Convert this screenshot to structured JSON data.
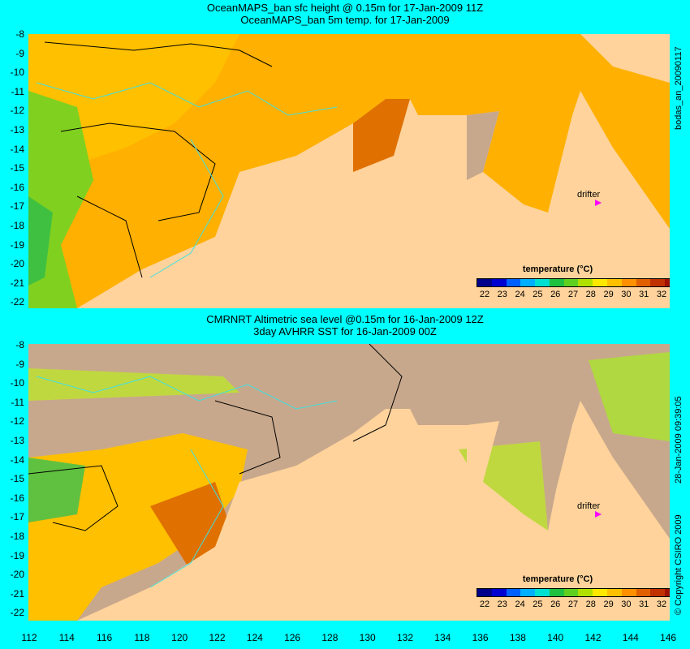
{
  "top_panel": {
    "title_line1": "OceanMAPS_ban sfc height @ 0.15m for 17-Jan-2009 11Z",
    "title_line2": "OceanMAPS_ban 5m temp. for 17-Jan-2009",
    "side_label": "bodas_an_20090117"
  },
  "bottom_panel": {
    "title_line1": "CMRNRT Altimetric sea level  @0.15m  for 16-Jan-2009 12Z",
    "title_line2": "3day AVHRR SST for 16-Jan-2009 00Z",
    "side_label": "28-Jan-2009 09:39:05",
    "copyright": "© Copyright CSIRO 2009"
  },
  "colorbar": {
    "title": "temperature (°C)",
    "ticks": [
      "22",
      "23",
      "24",
      "25",
      "26",
      "27",
      "28",
      "29",
      "30",
      "31",
      "32"
    ],
    "colors": [
      "#00008b",
      "#0000d0",
      "#0060ff",
      "#00b0ff",
      "#00e0d0",
      "#20c040",
      "#60d020",
      "#b0e000",
      "#ffe800",
      "#ffc000",
      "#ff9000",
      "#e06000",
      "#c03000",
      "#a01000"
    ]
  },
  "drifter_label": "drifter",
  "y_axis_labels": [
    "-8",
    "-9",
    "-10",
    "-11",
    "-12",
    "-13",
    "-14",
    "-15",
    "-16",
    "-17",
    "-18",
    "-19",
    "-20",
    "-21",
    "-22"
  ],
  "x_axis_labels": [
    "112",
    "114",
    "116",
    "118",
    "120",
    "122",
    "124",
    "126",
    "128",
    "130",
    "132",
    "134",
    "136",
    "138",
    "140",
    "142",
    "144",
    "146"
  ],
  "map_colors": {
    "land": "#ffd39b",
    "sea_warm": "#ffb000",
    "sea_hot": "#e07000",
    "sea_cool": "#80d020",
    "no_data": "#c8a88c",
    "contour": "#000000",
    "bathymetry": "#40e0e0",
    "background": "#00ffff"
  }
}
